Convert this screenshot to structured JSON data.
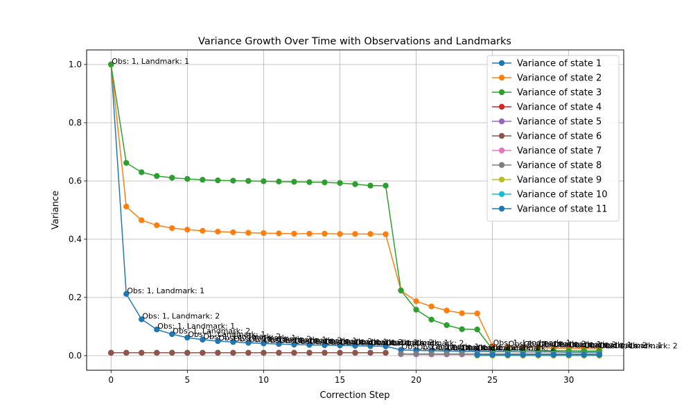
{
  "chart_data": {
    "type": "line",
    "title": "Variance Growth Over Time with Observations and Landmarks",
    "xlabel": "Correction Step",
    "ylabel": "Variance",
    "xlim": [
      -1.6,
      33.6
    ],
    "ylim": [
      -0.05,
      1.05
    ],
    "xticks": [
      0,
      5,
      10,
      15,
      20,
      25,
      30
    ],
    "yticks": [
      0.0,
      0.2,
      0.4,
      0.6,
      0.8,
      1.0
    ],
    "xtick_labels": [
      "0",
      "5",
      "10",
      "15",
      "20",
      "25",
      "30"
    ],
    "ytick_labels": [
      "0.0",
      "0.2",
      "0.4",
      "0.6",
      "0.8",
      "1.0"
    ],
    "grid": true,
    "legend_position": "top-right",
    "series": [
      {
        "name": "Variance of state 1",
        "color": "#1f77b4",
        "x": [
          0,
          1,
          2,
          3,
          4,
          5,
          6,
          7,
          8,
          9,
          10,
          11,
          12,
          13,
          14,
          15,
          16,
          17,
          18,
          19,
          20,
          21,
          22,
          23,
          24,
          25,
          26,
          27,
          28,
          29,
          30,
          31,
          32
        ],
        "y": [
          1.0,
          0.212,
          0.125,
          0.09,
          0.074,
          0.062,
          0.055,
          0.05,
          0.047,
          0.044,
          0.042,
          0.04,
          0.038,
          0.037,
          0.036,
          0.035,
          0.034,
          0.033,
          0.032,
          0.02,
          0.018,
          0.017,
          0.016,
          0.015,
          0.015,
          0.014,
          0.014,
          0.013,
          0.013,
          0.013,
          0.012,
          0.012,
          0.012
        ]
      },
      {
        "name": "Variance of state 2",
        "color": "#ff7f0e",
        "x": [
          0,
          1,
          2,
          3,
          4,
          5,
          6,
          7,
          8,
          9,
          10,
          11,
          12,
          13,
          14,
          15,
          16,
          17,
          18,
          19,
          20,
          21,
          22,
          23,
          24,
          25,
          26,
          27,
          28,
          29,
          30,
          31,
          32
        ],
        "y": [
          1.0,
          0.512,
          0.465,
          0.448,
          0.438,
          0.433,
          0.429,
          0.426,
          0.424,
          0.422,
          0.421,
          0.42,
          0.419,
          0.419,
          0.419,
          0.418,
          0.418,
          0.418,
          0.417,
          0.224,
          0.187,
          0.169,
          0.155,
          0.146,
          0.145,
          0.033,
          0.03,
          0.028,
          0.027,
          0.026,
          0.025,
          0.024,
          0.023
        ]
      },
      {
        "name": "Variance of state 3",
        "color": "#2ca02c",
        "x": [
          0,
          1,
          2,
          3,
          4,
          5,
          6,
          7,
          8,
          9,
          10,
          11,
          12,
          13,
          14,
          15,
          16,
          17,
          18,
          19,
          20,
          21,
          22,
          23,
          24,
          25,
          26,
          27,
          28,
          29,
          30,
          31,
          32
        ],
        "y": [
          1.0,
          0.662,
          0.63,
          0.617,
          0.611,
          0.607,
          0.604,
          0.602,
          0.601,
          0.6,
          0.599,
          0.598,
          0.597,
          0.596,
          0.595,
          0.593,
          0.589,
          0.584,
          0.584,
          0.224,
          0.158,
          0.124,
          0.105,
          0.091,
          0.09,
          0.022,
          0.02,
          0.019,
          0.018,
          0.017,
          0.017,
          0.016,
          0.016
        ]
      },
      {
        "name": "Variance of state 4",
        "color": "#d62728",
        "x": [
          0,
          1,
          2,
          3,
          4,
          5,
          6,
          7,
          8,
          9,
          10,
          11,
          12,
          13,
          14,
          15,
          16,
          17,
          18
        ],
        "y": [
          0.01,
          0.01,
          0.01,
          0.01,
          0.01,
          0.01,
          0.01,
          0.01,
          0.01,
          0.01,
          0.01,
          0.01,
          0.01,
          0.01,
          0.01,
          0.01,
          0.01,
          0.01,
          0.01
        ]
      },
      {
        "name": "Variance of state 5",
        "color": "#9467bd",
        "x": [
          0,
          1,
          2,
          3,
          4,
          5,
          6,
          7,
          8,
          9,
          10,
          11,
          12,
          13,
          14,
          15,
          16,
          17,
          18
        ],
        "y": [
          0.01,
          0.01,
          0.01,
          0.01,
          0.01,
          0.01,
          0.01,
          0.01,
          0.01,
          0.01,
          0.01,
          0.01,
          0.01,
          0.01,
          0.01,
          0.01,
          0.01,
          0.01,
          0.01
        ]
      },
      {
        "name": "Variance of state 6",
        "color": "#8c564b",
        "x": [
          0,
          1,
          2,
          3,
          4,
          5,
          6,
          7,
          8,
          9,
          10,
          11,
          12,
          13,
          14,
          15,
          16,
          17,
          18
        ],
        "y": [
          0.01,
          0.01,
          0.01,
          0.01,
          0.01,
          0.01,
          0.01,
          0.01,
          0.01,
          0.01,
          0.01,
          0.01,
          0.01,
          0.01,
          0.01,
          0.01,
          0.01,
          0.01,
          0.01
        ]
      },
      {
        "name": "Variance of state 7",
        "color": "#e377c2",
        "x": [
          19,
          20,
          21,
          22,
          23,
          24,
          25,
          26,
          27,
          28,
          29,
          30,
          31,
          32
        ],
        "y": [
          0.005,
          0.004,
          0.004,
          0.004,
          0.004,
          0.004,
          0.004,
          0.004,
          0.004,
          0.004,
          0.004,
          0.004,
          0.004,
          0.004
        ]
      },
      {
        "name": "Variance of state 8",
        "color": "#7f7f7f",
        "x": [
          19,
          20,
          21,
          22,
          23,
          24,
          25,
          26,
          27,
          28,
          29,
          30,
          31,
          32
        ],
        "y": [
          0.006,
          0.006,
          0.006,
          0.006,
          0.006,
          0.006,
          0.006,
          0.006,
          0.006,
          0.006,
          0.006,
          0.006,
          0.006,
          0.006
        ]
      },
      {
        "name": "Variance of state 9",
        "color": "#bcbd22",
        "x": [
          24,
          25,
          26,
          27,
          28,
          29,
          30,
          31,
          32
        ],
        "y": [
          0.0,
          0.0,
          0.0,
          0.0,
          0.0,
          0.0,
          0.0,
          0.0,
          0.0
        ]
      },
      {
        "name": "Variance of state 10",
        "color": "#17becf",
        "x": [
          24,
          25,
          26,
          27,
          28,
          29,
          30,
          31,
          32
        ],
        "y": [
          0.002,
          0.002,
          0.002,
          0.002,
          0.002,
          0.002,
          0.002,
          0.002,
          0.002
        ]
      },
      {
        "name": "Variance of state 11",
        "color": "#1f77b4",
        "x": [
          24,
          25,
          26,
          27,
          28,
          29,
          30,
          31,
          32
        ],
        "y": [
          0.003,
          0.003,
          0.003,
          0.003,
          0.003,
          0.003,
          0.003,
          0.003,
          0.003
        ]
      }
    ],
    "annotations": [
      {
        "text": "Obs: 1, Landmark: 1",
        "x": 0,
        "y": 1.0
      },
      {
        "text": "Obs: 1, Landmark: 1",
        "x": 1,
        "y": 0.212
      },
      {
        "text": "Obs: 1, Landmark: 2",
        "x": 2,
        "y": 0.125
      },
      {
        "text": "Obs: 1, Landmark: 1",
        "x": 3,
        "y": 0.09
      },
      {
        "text": "Obs: 1, Landmark: 2",
        "x": 4,
        "y": 0.074
      },
      {
        "text": "Obs: 1, Landmark: 1",
        "x": 5,
        "y": 0.062
      },
      {
        "text": "Obs: 1, Landmark: 2",
        "x": 6,
        "y": 0.055
      },
      {
        "text": "Obs: 1, Landmark: 1",
        "x": 7,
        "y": 0.05
      },
      {
        "text": "Obs: 1, Landmark: 2",
        "x": 8,
        "y": 0.047
      },
      {
        "text": "Obs: 1, Landmark: 1",
        "x": 9,
        "y": 0.044
      },
      {
        "text": "Obs: 1, Landmark: 2",
        "x": 10,
        "y": 0.042
      },
      {
        "text": "Obs: 1, Landmark: 1",
        "x": 11,
        "y": 0.04
      },
      {
        "text": "Obs: 1, Landmark: 2",
        "x": 12,
        "y": 0.038
      },
      {
        "text": "Obs: 1, Landmark: 1",
        "x": 13,
        "y": 0.037
      },
      {
        "text": "Obs: 1, Landmark: 2",
        "x": 14,
        "y": 0.036
      },
      {
        "text": "Obs: 1, Landmark: 1",
        "x": 15,
        "y": 0.035
      },
      {
        "text": "Obs: 1, Landmark: 2",
        "x": 16,
        "y": 0.034
      },
      {
        "text": "Obs: 1, Landmark: 1",
        "x": 17,
        "y": 0.033
      },
      {
        "text": "Obs: 1, Landmark: 2",
        "x": 18,
        "y": 0.032
      },
      {
        "text": "Obs: 1, Landmark: 1",
        "x": 19,
        "y": 0.02
      },
      {
        "text": "Obs: 1, Landmark: 2",
        "x": 20,
        "y": 0.018
      },
      {
        "text": "Obs: 1, Landmark: 1",
        "x": 21,
        "y": 0.017
      },
      {
        "text": "Obs: 1, Landmark: 2",
        "x": 22,
        "y": 0.016
      },
      {
        "text": "Obs: 1, Landmark: 1",
        "x": 23,
        "y": 0.015
      },
      {
        "text": "Obs: 1, Landmark: 2",
        "x": 24,
        "y": 0.015
      },
      {
        "text": "Obs: 1, Landmark: 1",
        "x": 25,
        "y": 0.033
      },
      {
        "text": "Obs: 1, Landmark: 2",
        "x": 26,
        "y": 0.03
      },
      {
        "text": "Obs: 1, Landmark: 1",
        "x": 27,
        "y": 0.028
      },
      {
        "text": "Obs: 1, Landmark: 2",
        "x": 28,
        "y": 0.027
      },
      {
        "text": "Obs: 1, Landmark: 1",
        "x": 29,
        "y": 0.026
      },
      {
        "text": "Obs: 1, Landmark: 2",
        "x": 30,
        "y": 0.025
      },
      {
        "text": "Obs: 1, Landmark: 1",
        "x": 31,
        "y": 0.024
      },
      {
        "text": "Obs: 1, Landmark: 2",
        "x": 32,
        "y": 0.023
      }
    ]
  }
}
